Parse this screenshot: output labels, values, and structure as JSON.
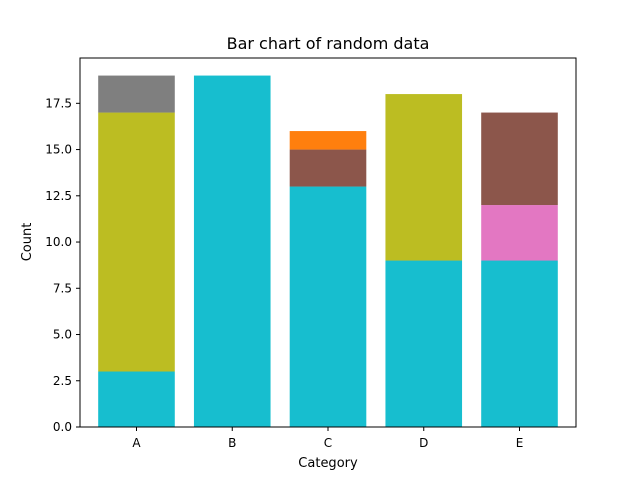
{
  "chart_data": {
    "type": "bar",
    "stacked": true,
    "title": "Bar chart of random data",
    "xlabel": "Category",
    "ylabel": "Count",
    "categories": [
      "A",
      "B",
      "C",
      "D",
      "E"
    ],
    "ylim": [
      0,
      19.95
    ],
    "yticks": [
      0.0,
      2.5,
      5.0,
      7.5,
      10.0,
      12.5,
      15.0,
      17.5
    ],
    "ytick_labels": [
      "0.0",
      "2.5",
      "5.0",
      "7.5",
      "10.0",
      "12.5",
      "15.0",
      "17.5"
    ],
    "grid": false,
    "legend": "none",
    "segments": [
      {
        "category": "A",
        "values": [
          3,
          14,
          2
        ],
        "colors": [
          "#17becf",
          "#bcbd22",
          "#7f7f7f"
        ]
      },
      {
        "category": "B",
        "values": [
          19
        ],
        "colors": [
          "#17becf"
        ]
      },
      {
        "category": "C",
        "values": [
          13,
          2,
          1
        ],
        "colors": [
          "#17becf",
          "#8c564b",
          "#ff7f0e"
        ]
      },
      {
        "category": "D",
        "values": [
          9,
          9
        ],
        "colors": [
          "#17becf",
          "#bcbd22"
        ]
      },
      {
        "category": "E",
        "values": [
          9,
          3,
          5
        ],
        "colors": [
          "#17becf",
          "#e377c2",
          "#8c564b"
        ]
      }
    ]
  }
}
